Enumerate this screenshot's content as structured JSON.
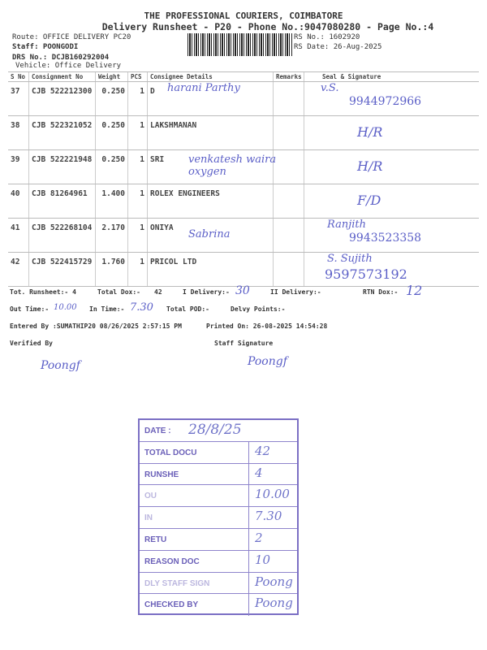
{
  "header": {
    "company": "THE PROFESSIONAL COURIERS, COIMBATORE",
    "subtitle": "Delivery Runsheet - P20 - Phone No.:9047080280 - Page No.:4",
    "route": "Route: OFFICE DELIVERY PC20",
    "staff": "Staff: POONGODI",
    "drs": "DRS No.: DCJB160292004",
    "vehicle": "Vehicle: Office Delivery",
    "rs_no": "RS No.: 1602920",
    "rs_date": "RS Date: 26-Aug-2025"
  },
  "table": {
    "columns": [
      "S No",
      "Consignment No",
      "Weight",
      "PCS",
      "Consignee Details",
      "Remarks",
      "Seal & Signature"
    ],
    "rows": [
      {
        "sno": "37",
        "cn": "CJB 522212300",
        "weight": "0.250",
        "pcs": "1",
        "consignee": "D",
        "hw_consignee": "harani Parthy",
        "hw_sign": "v.S.",
        "hw_phone": "9944972966"
      },
      {
        "sno": "38",
        "cn": "CJB 522321052",
        "weight": "0.250",
        "pcs": "1",
        "consignee": "LAKSHMANAN",
        "hw_consignee": "",
        "hw_sign": "H/R",
        "hw_phone": ""
      },
      {
        "sno": "39",
        "cn": "CJB 522221948",
        "weight": "0.250",
        "pcs": "1",
        "consignee": "SRI",
        "hw_consignee": "venkatesh waira oxygen",
        "hw_sign": "H/R",
        "hw_phone": ""
      },
      {
        "sno": "40",
        "cn": "CJB 81264961",
        "weight": "1.400",
        "pcs": "1",
        "consignee": "ROLEX ENGINEERS",
        "hw_consignee": "",
        "hw_sign": "F/D",
        "hw_phone": ""
      },
      {
        "sno": "41",
        "cn": "CJB 522268104",
        "weight": "2.170",
        "pcs": "1",
        "consignee": "ONIYA",
        "hw_consignee": "Sabrina",
        "hw_sign": "Ranjith",
        "hw_phone": "9943523358"
      },
      {
        "sno": "42",
        "cn": "CJB 522415729",
        "weight": "1.760",
        "pcs": "1",
        "consignee": "PRICOL LTD",
        "hw_consignee": "",
        "hw_sign": "S. Sujith",
        "hw_phone": "9597573192"
      }
    ]
  },
  "summary": {
    "tot_runsheet": "Tot. Runsheet:- 4",
    "total_dox": "Total Dox:-",
    "total_dox_val": "42",
    "i_delivery": "I Delivery:-",
    "i_delivery_val": "30",
    "ii_delivery": "II Delivery:-",
    "rtn_dox": "RTN Dox:-",
    "rtn_dox_val": "12",
    "out_time": "Out Time:-",
    "out_time_val": "10.00",
    "in_time": "In Time:-",
    "in_time_val": "7.30",
    "total_pod": "Total POD:-",
    "delvy_points": "Delvy Points:-",
    "entered_by": "Entered By :SUMATHIP20 08/26/2025 2:57:15 PM",
    "printed_on": "Printed On: 26-08-2025 14:54:28",
    "verified_by": "Verified By",
    "staff_signature": "Staff Signature",
    "sig1": "Poongf",
    "sig2": "Poongf"
  },
  "stamp": {
    "rows": [
      {
        "label": "DATE :",
        "value": "28/8/25",
        "faded": false
      },
      {
        "label": "TOTAL DOCU",
        "value": "42",
        "faded": false
      },
      {
        "label": "RUNSHE",
        "value": "4",
        "faded": false
      },
      {
        "label": "OU",
        "value": "10.00",
        "faded": true
      },
      {
        "label": "IN",
        "value": "7.30",
        "faded": true
      },
      {
        "label": "RETU",
        "value": "2",
        "faded": false
      },
      {
        "label": "REASON DOC",
        "value": "10",
        "faded": false
      },
      {
        "label": "DLY STAFF SIGN",
        "value": "Poong",
        "faded": true
      },
      {
        "label": "CHECKED BY",
        "value": "Poong",
        "faded": false
      }
    ]
  },
  "colors": {
    "ink": "#5b5fc7",
    "stamp": "#6a5fb8"
  }
}
